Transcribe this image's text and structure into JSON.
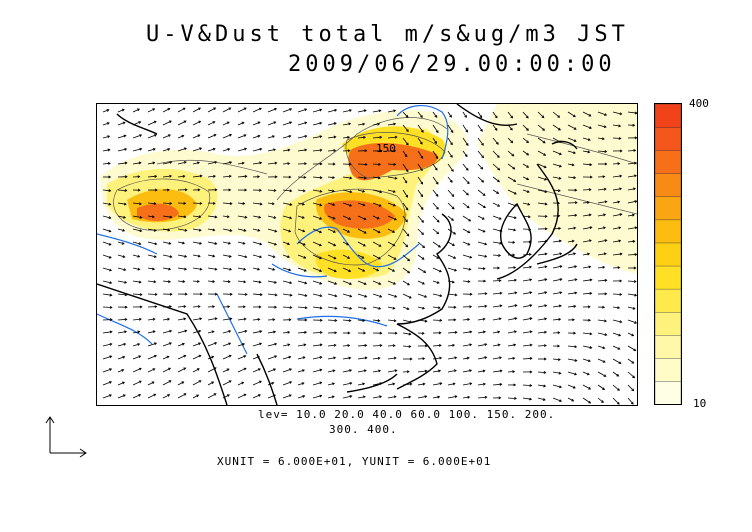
{
  "title": {
    "line1": "U-V&Dust total m/s&ug/m3 JST",
    "line2": "2009/06/29.00:00:00"
  },
  "map": {
    "contour_label": "150"
  },
  "colorbar": {
    "max_label": "400",
    "min_label": "10",
    "colors": [
      "#ffffe5",
      "#fffcc8",
      "#fff8a8",
      "#fff27c",
      "#ffea4c",
      "#ffe025",
      "#fdd014",
      "#fcbd10",
      "#faa512",
      "#f88b16",
      "#f6701a",
      "#f4561c",
      "#f2421a"
    ]
  },
  "levels": {
    "line1": "lev= 10.0 20.0 40.0 60.0 100. 150. 200.",
    "line2": "300. 400."
  },
  "units_line": "XUNIT = 6.000E+01, YUNIT = 6.000E+01"
}
